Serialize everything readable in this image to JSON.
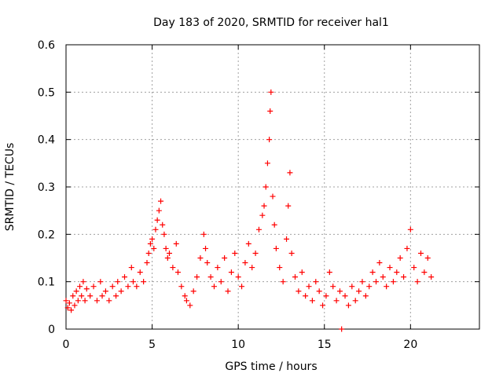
{
  "chart_data": {
    "type": "scatter",
    "title": "Day 183 of 2020, SRMTID for receiver hal1",
    "xlabel": "GPS time / hours",
    "ylabel": "SRMTID / TECUs",
    "xlim": [
      0,
      24
    ],
    "ylim": [
      0,
      0.6
    ],
    "x_ticks": [
      0,
      5,
      10,
      15,
      20
    ],
    "x_tick_labels": [
      "0",
      "5",
      "10",
      "15",
      "20"
    ],
    "y_ticks": [
      0,
      0.1,
      0.2,
      0.3,
      0.4,
      0.5,
      0.6
    ],
    "y_tick_labels": [
      "0",
      "0.1",
      "0.2",
      "0.3",
      "0.4",
      "0.5",
      "0.6"
    ],
    "grid": true,
    "marker": "+",
    "color": "#ff0000",
    "series": [
      {
        "name": "SRMTID",
        "points": [
          [
            0.0,
            0.06
          ],
          [
            0.1,
            0.045
          ],
          [
            0.2,
            0.055
          ],
          [
            0.3,
            0.04
          ],
          [
            0.4,
            0.07
          ],
          [
            0.5,
            0.05
          ],
          [
            0.6,
            0.08
          ],
          [
            0.7,
            0.06
          ],
          [
            0.8,
            0.09
          ],
          [
            0.9,
            0.07
          ],
          [
            1.0,
            0.1
          ],
          [
            1.1,
            0.06
          ],
          [
            1.2,
            0.085
          ],
          [
            1.4,
            0.07
          ],
          [
            1.6,
            0.09
          ],
          [
            1.8,
            0.06
          ],
          [
            2.0,
            0.1
          ],
          [
            2.1,
            0.07
          ],
          [
            2.3,
            0.08
          ],
          [
            2.5,
            0.06
          ],
          [
            2.7,
            0.09
          ],
          [
            2.9,
            0.07
          ],
          [
            3.0,
            0.1
          ],
          [
            3.2,
            0.08
          ],
          [
            3.4,
            0.11
          ],
          [
            3.6,
            0.09
          ],
          [
            3.8,
            0.13
          ],
          [
            3.9,
            0.1
          ],
          [
            4.1,
            0.09
          ],
          [
            4.3,
            0.12
          ],
          [
            4.5,
            0.1
          ],
          [
            4.7,
            0.14
          ],
          [
            4.8,
            0.16
          ],
          [
            4.9,
            0.18
          ],
          [
            5.0,
            0.19
          ],
          [
            5.1,
            0.17
          ],
          [
            5.2,
            0.21
          ],
          [
            5.3,
            0.23
          ],
          [
            5.4,
            0.25
          ],
          [
            5.5,
            0.27
          ],
          [
            5.6,
            0.22
          ],
          [
            5.7,
            0.2
          ],
          [
            5.8,
            0.17
          ],
          [
            5.9,
            0.15
          ],
          [
            6.0,
            0.16
          ],
          [
            6.2,
            0.13
          ],
          [
            6.4,
            0.18
          ],
          [
            6.5,
            0.12
          ],
          [
            6.7,
            0.09
          ],
          [
            6.9,
            0.07
          ],
          [
            7.0,
            0.06
          ],
          [
            7.2,
            0.05
          ],
          [
            7.4,
            0.08
          ],
          [
            7.6,
            0.11
          ],
          [
            7.8,
            0.15
          ],
          [
            8.0,
            0.2
          ],
          [
            8.1,
            0.17
          ],
          [
            8.2,
            0.14
          ],
          [
            8.4,
            0.11
          ],
          [
            8.6,
            0.09
          ],
          [
            8.8,
            0.13
          ],
          [
            9.0,
            0.1
          ],
          [
            9.2,
            0.15
          ],
          [
            9.4,
            0.08
          ],
          [
            9.6,
            0.12
          ],
          [
            9.8,
            0.16
          ],
          [
            10.0,
            0.11
          ],
          [
            10.2,
            0.09
          ],
          [
            10.4,
            0.14
          ],
          [
            10.6,
            0.18
          ],
          [
            10.8,
            0.13
          ],
          [
            11.0,
            0.16
          ],
          [
            11.2,
            0.21
          ],
          [
            11.4,
            0.24
          ],
          [
            11.5,
            0.26
          ],
          [
            11.6,
            0.3
          ],
          [
            11.7,
            0.35
          ],
          [
            11.8,
            0.4
          ],
          [
            11.85,
            0.46
          ],
          [
            11.9,
            0.5
          ],
          [
            12.0,
            0.28
          ],
          [
            12.1,
            0.22
          ],
          [
            12.2,
            0.17
          ],
          [
            12.4,
            0.13
          ],
          [
            12.6,
            0.1
          ],
          [
            12.8,
            0.19
          ],
          [
            12.9,
            0.26
          ],
          [
            13.0,
            0.33
          ],
          [
            13.1,
            0.16
          ],
          [
            13.3,
            0.11
          ],
          [
            13.5,
            0.08
          ],
          [
            13.7,
            0.12
          ],
          [
            13.9,
            0.07
          ],
          [
            14.1,
            0.09
          ],
          [
            14.3,
            0.06
          ],
          [
            14.5,
            0.1
          ],
          [
            14.7,
            0.08
          ],
          [
            14.9,
            0.05
          ],
          [
            15.1,
            0.07
          ],
          [
            15.3,
            0.12
          ],
          [
            15.5,
            0.09
          ],
          [
            15.7,
            0.06
          ],
          [
            15.9,
            0.08
          ],
          [
            16.0,
            0.0
          ],
          [
            16.2,
            0.07
          ],
          [
            16.4,
            0.05
          ],
          [
            16.6,
            0.09
          ],
          [
            16.8,
            0.06
          ],
          [
            17.0,
            0.08
          ],
          [
            17.2,
            0.1
          ],
          [
            17.4,
            0.07
          ],
          [
            17.6,
            0.09
          ],
          [
            17.8,
            0.12
          ],
          [
            18.0,
            0.1
          ],
          [
            18.2,
            0.14
          ],
          [
            18.4,
            0.11
          ],
          [
            18.6,
            0.09
          ],
          [
            18.8,
            0.13
          ],
          [
            19.0,
            0.1
          ],
          [
            19.2,
            0.12
          ],
          [
            19.4,
            0.15
          ],
          [
            19.6,
            0.11
          ],
          [
            19.8,
            0.17
          ],
          [
            20.0,
            0.21
          ],
          [
            20.2,
            0.13
          ],
          [
            20.4,
            0.1
          ],
          [
            20.6,
            0.16
          ],
          [
            20.8,
            0.12
          ],
          [
            21.0,
            0.15
          ],
          [
            21.2,
            0.11
          ]
        ]
      }
    ]
  }
}
